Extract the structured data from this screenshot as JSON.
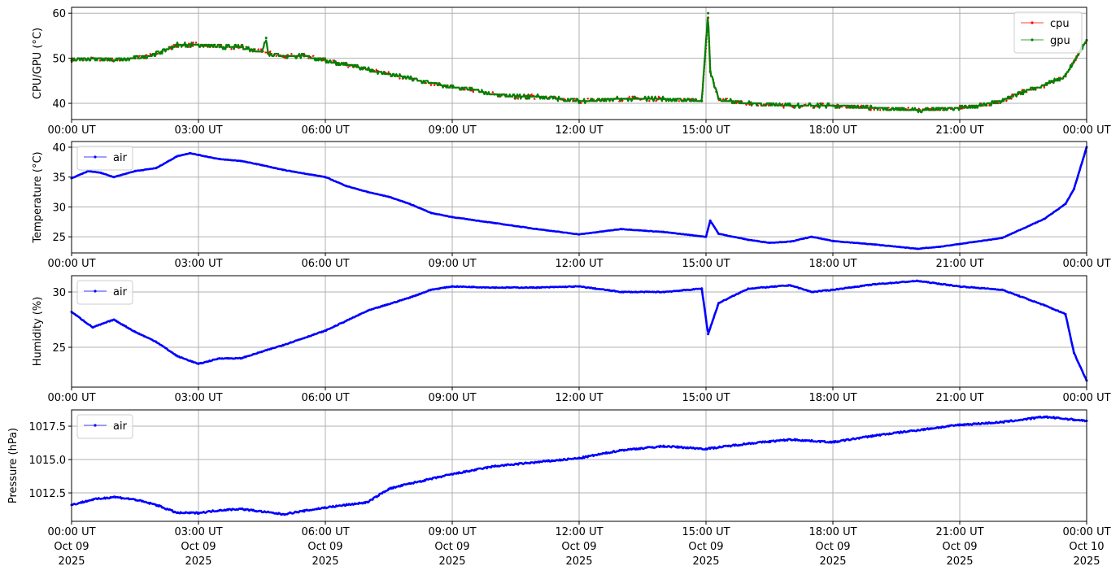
{
  "colors": {
    "cpu": "#ff0000",
    "gpu": "#008000",
    "air": "#0000ff",
    "grid": "#b0b0b0"
  },
  "chart_data": [
    {
      "type": "line",
      "ylabel": "CPU/GPU (°C)",
      "ylim": [
        36.4,
        61.3
      ],
      "yticks": [
        40,
        50,
        60
      ],
      "ytick_labels": [
        "40",
        "50",
        "60"
      ],
      "grid": true,
      "legend": "top-right",
      "x_unit": "hours since Oct 09 2025 00:00 UT",
      "series": [
        {
          "name": "cpu",
          "color": "#ff0000",
          "x": [
            0,
            0.5,
            1,
            1.5,
            2,
            2.5,
            3,
            3.5,
            4,
            4.5,
            5,
            5.5,
            6,
            6.5,
            7,
            7.5,
            8,
            8.5,
            9,
            9.5,
            10,
            10.5,
            11,
            11.5,
            12,
            13,
            14,
            14.9,
            15.05,
            15.1,
            15.3,
            16,
            17,
            18,
            19,
            20,
            21,
            21.5,
            22,
            22.5,
            23,
            23.5,
            24
          ],
          "y": [
            49.5,
            50,
            49.5,
            50,
            51,
            53,
            53,
            52.5,
            52.5,
            51.5,
            50.5,
            50.5,
            49.5,
            48.5,
            47.5,
            46.5,
            45.5,
            44.5,
            43.5,
            43,
            42,
            41.5,
            41.5,
            41,
            40.5,
            41,
            41,
            40.5,
            59,
            47,
            41,
            40,
            39.5,
            39.5,
            39,
            38.5,
            39,
            39.5,
            40.5,
            42.5,
            44,
            46,
            54
          ]
        },
        {
          "name": "gpu",
          "color": "#008000",
          "x": [
            0,
            0.5,
            1,
            1.5,
            2,
            2.5,
            3,
            3.5,
            4,
            4.5,
            4.6,
            4.65,
            5,
            5.5,
            6,
            6.5,
            7,
            7.5,
            8,
            8.5,
            9,
            9.5,
            10,
            10.5,
            11,
            11.5,
            12,
            13,
            14,
            14.9,
            15.05,
            15.1,
            15.3,
            16,
            17,
            18,
            19,
            20,
            21,
            21.5,
            22,
            22.5,
            23,
            23.5,
            24
          ],
          "y": [
            49.5,
            50,
            49.5,
            50,
            51,
            53,
            53,
            52.5,
            52.5,
            51.5,
            54.5,
            51,
            50.5,
            50.5,
            49.5,
            48.5,
            47.5,
            46.5,
            45.5,
            44.5,
            43.5,
            43,
            42,
            41.5,
            41.5,
            41,
            40.5,
            41,
            41,
            40.5,
            60,
            47,
            41,
            40,
            39.5,
            39.5,
            39,
            38.5,
            39,
            39.5,
            40.5,
            42.5,
            44,
            46,
            54
          ]
        }
      ]
    },
    {
      "type": "line",
      "ylabel": "Temperature (°C)",
      "ylim": [
        22.3,
        40.95
      ],
      "yticks": [
        25,
        30,
        35,
        40
      ],
      "ytick_labels": [
        "25",
        "30",
        "35",
        "40"
      ],
      "grid": true,
      "legend": "top-left",
      "series": [
        {
          "name": "air",
          "color": "#0000ff",
          "x": [
            0,
            0.4,
            0.7,
            1,
            1.5,
            2,
            2.5,
            2.8,
            3,
            3.5,
            4,
            4.5,
            5,
            6,
            6.5,
            7,
            7.5,
            8,
            8.5,
            9,
            10,
            11,
            12,
            13,
            14,
            15,
            15.1,
            15.3,
            16,
            16.5,
            17,
            17.5,
            18,
            19,
            20,
            20.5,
            21,
            22,
            23,
            23.5,
            23.7,
            24
          ],
          "y": [
            34.8,
            36,
            35.7,
            35,
            36,
            36.5,
            38.5,
            39,
            38.7,
            38,
            37.7,
            37,
            36.2,
            35,
            33.5,
            32.5,
            31.7,
            30.5,
            29,
            28.3,
            27.3,
            26.3,
            25.4,
            26.3,
            25.8,
            25,
            27.7,
            25.5,
            24.5,
            24,
            24.2,
            25,
            24.3,
            23.7,
            23,
            23.3,
            23.8,
            24.8,
            28,
            30.5,
            33,
            40
          ]
        }
      ]
    },
    {
      "type": "line",
      "ylabel": "Humidity (%)",
      "ylim": [
        21.4,
        31.47
      ],
      "yticks": [
        25,
        30
      ],
      "ytick_labels": [
        "25",
        "30"
      ],
      "grid": true,
      "legend": "top-left",
      "series": [
        {
          "name": "air",
          "color": "#0000ff",
          "x": [
            0,
            0.5,
            1,
            1.5,
            2,
            2.5,
            3,
            3.5,
            4,
            4.5,
            5,
            6,
            7,
            8,
            8.5,
            9,
            10,
            11,
            12,
            13,
            14,
            14.9,
            15.05,
            15.3,
            16,
            17,
            17.5,
            18,
            19,
            20,
            21,
            22,
            23,
            23.5,
            23.7,
            24
          ],
          "y": [
            28.2,
            26.8,
            27.5,
            26.4,
            25.5,
            24.2,
            23.5,
            24,
            24,
            24.6,
            25.2,
            26.5,
            28.3,
            29.5,
            30.2,
            30.5,
            30.4,
            30.4,
            30.5,
            30,
            30,
            30.3,
            26.2,
            29,
            30.3,
            30.6,
            30,
            30.2,
            30.7,
            31,
            30.5,
            30.2,
            28.8,
            28,
            24.5,
            22
          ]
        }
      ]
    },
    {
      "type": "line",
      "ylabel": "Pressure (hPa)",
      "ylim": [
        1010.37,
        1018.72
      ],
      "yticks": [
        1012.5,
        1015,
        1017.5
      ],
      "ytick_labels": [
        "1012.5",
        "1015.0",
        "1017.5"
      ],
      "grid": true,
      "legend": "top-left",
      "series": [
        {
          "name": "air",
          "color": "#0000ff",
          "x": [
            0,
            0.5,
            1,
            1.5,
            2,
            2.5,
            3,
            3.5,
            4,
            5,
            6,
            7,
            7.5,
            8,
            9,
            10,
            11,
            12,
            13,
            14,
            15,
            16,
            17,
            18,
            19,
            20,
            21,
            22,
            23,
            24
          ],
          "y": [
            1011.6,
            1012,
            1012.2,
            1012,
            1011.6,
            1011,
            1011,
            1011.2,
            1011.3,
            1010.9,
            1011.4,
            1011.8,
            1012.8,
            1013.2,
            1013.9,
            1014.5,
            1014.8,
            1015.1,
            1015.7,
            1016,
            1015.8,
            1016.2,
            1016.5,
            1016.3,
            1016.8,
            1017.2,
            1017.6,
            1017.8,
            1018.2,
            1017.9
          ]
        }
      ]
    }
  ],
  "xaxis": {
    "range_hours": [
      0,
      24
    ],
    "tick_hours": [
      0,
      3,
      6,
      9,
      12,
      15,
      18,
      21,
      24
    ],
    "tick_labels": [
      "00:00 UT",
      "03:00 UT",
      "06:00 UT",
      "09:00 UT",
      "12:00 UT",
      "15:00 UT",
      "18:00 UT",
      "21:00 UT",
      "00:00 UT"
    ],
    "date_labels": [
      "Oct 09",
      "Oct 09",
      "Oct 09",
      "Oct 09",
      "Oct 09",
      "Oct 09",
      "Oct 09",
      "Oct 09",
      "Oct 10"
    ],
    "year_labels": [
      "2025",
      "2025",
      "2025",
      "2025",
      "2025",
      "2025",
      "2025",
      "2025",
      "2025"
    ]
  }
}
